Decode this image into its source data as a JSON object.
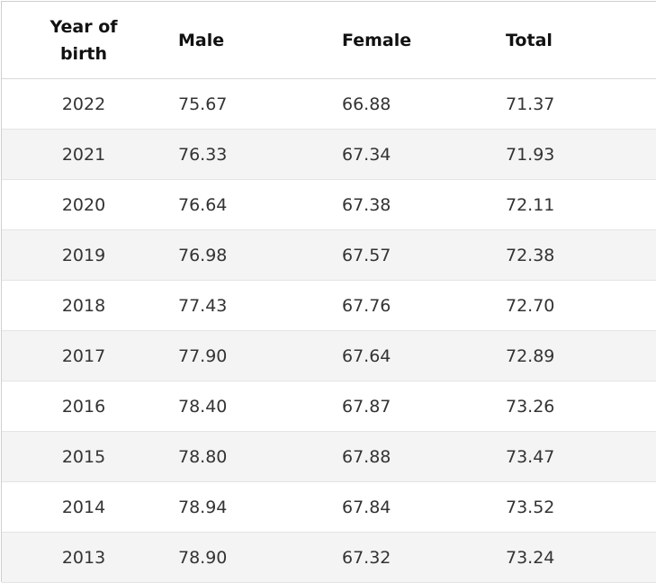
{
  "table": {
    "headers": [
      "Year of birth",
      "Male",
      "Female",
      "Total"
    ],
    "rows": [
      [
        "2022",
        "75.67",
        "66.88",
        "71.37"
      ],
      [
        "2021",
        "76.33",
        "67.34",
        "71.93"
      ],
      [
        "2020",
        "76.64",
        "67.38",
        "72.11"
      ],
      [
        "2019",
        "76.98",
        "67.57",
        "72.38"
      ],
      [
        "2018",
        "77.43",
        "67.76",
        "72.70"
      ],
      [
        "2017",
        "77.90",
        "67.64",
        "72.89"
      ],
      [
        "2016",
        "78.40",
        "67.87",
        "73.26"
      ],
      [
        "2015",
        "78.80",
        "67.88",
        "73.47"
      ],
      [
        "2014",
        "78.94",
        "67.84",
        "73.52"
      ],
      [
        "2013",
        "78.90",
        "67.32",
        "73.24"
      ]
    ]
  }
}
